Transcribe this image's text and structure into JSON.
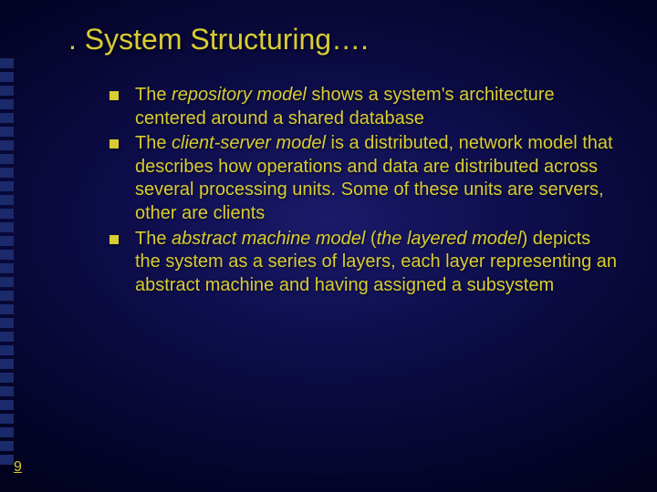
{
  "title": ". System Structuring….",
  "page_number": "9",
  "colors": {
    "text": "#d9cc33",
    "bullet": "#d9cc33",
    "sidebar_square": "#1a2a6a",
    "bg_center": "#1a1a6a",
    "bg_edge": "#000015"
  },
  "typography": {
    "title_fontsize": 32,
    "body_fontsize": 20,
    "font_family": "Arial"
  },
  "bullets": [
    {
      "pre": "The ",
      "emph": "repository model",
      "post": " shows a system's architecture centered around a shared database"
    },
    {
      "pre": "The ",
      "emph": "client-server model",
      "post": " is a distributed, network model that describes how operations and data are distributed across several processing units. Some of these units are servers, other are clients"
    },
    {
      "pre": "The ",
      "emph": "abstract machine model",
      "post_pre": " (",
      "emph2": "the layered model",
      "post": ") depicts the system as a series of layers, each layer representing an abstract machine and having assigned a subsystem"
    }
  ],
  "sidebar_square_count": 30
}
